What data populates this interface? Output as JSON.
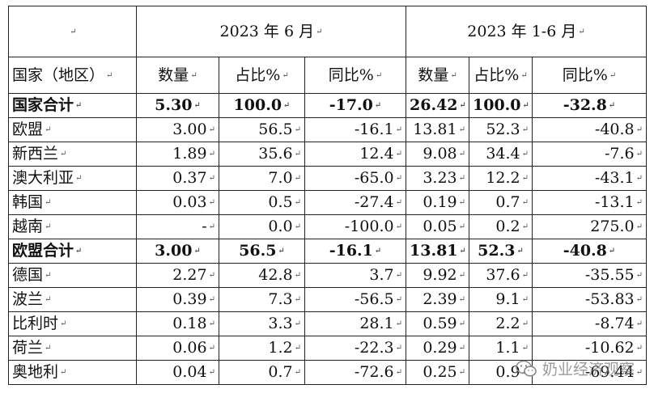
{
  "header": {
    "blank_mark": "↵",
    "period1": "2023 年 6 月",
    "period2": "2023 年 1-6 月",
    "col_country": "国家（地区）",
    "col_qty": "数量",
    "col_share": "占比%",
    "col_yoy": "同比%"
  },
  "rows": [
    {
      "name": "国家合计",
      "q1": "5.30",
      "s1": "100.0",
      "y1": "-17.0",
      "q2": "26.42",
      "s2": "100.0",
      "y2": "-32.8",
      "bold": true
    },
    {
      "name": "欧盟",
      "q1": "3.00",
      "s1": "56.5",
      "y1": "-16.1",
      "q2": "13.81",
      "s2": "52.3",
      "y2": "-40.8"
    },
    {
      "name": "新西兰",
      "q1": "1.89",
      "s1": "35.6",
      "y1": "12.4",
      "q2": "9.08",
      "s2": "34.4",
      "y2": "-7.6"
    },
    {
      "name": "澳大利亚",
      "q1": "0.37",
      "s1": "7.0",
      "y1": "-65.0",
      "q2": "3.23",
      "s2": "12.2",
      "y2": "-43.1"
    },
    {
      "name": "韩国",
      "q1": "0.03",
      "s1": "0.5",
      "y1": "-27.4",
      "q2": "0.19",
      "s2": "0.7",
      "y2": "-13.1"
    },
    {
      "name": "越南",
      "q1": "-",
      "s1": "0.0",
      "y1": "-100.0",
      "q2": "0.05",
      "s2": "0.2",
      "y2": "275.0"
    },
    {
      "name": "欧盟合计",
      "q1": "3.00",
      "s1": "56.5",
      "y1": "-16.1",
      "q2": "13.81",
      "s2": "52.3",
      "y2": "-40.8",
      "bold": true
    },
    {
      "name": "德国",
      "q1": "2.27",
      "s1": "42.8",
      "y1": "3.7",
      "q2": "9.92",
      "s2": "37.6",
      "y2": "-35.55"
    },
    {
      "name": "波兰",
      "q1": "0.39",
      "s1": "7.3",
      "y1": "-56.5",
      "q2": "2.39",
      "s2": "9.1",
      "y2": "-53.83"
    },
    {
      "name": "比利时",
      "q1": "0.18",
      "s1": "3.3",
      "y1": "28.1",
      "q2": "0.59",
      "s2": "2.2",
      "y2": "-8.74"
    },
    {
      "name": "荷兰",
      "q1": "0.06",
      "s1": "1.2",
      "y1": "-22.3",
      "q2": "0.29",
      "s2": "1.1",
      "y2": "-10.62"
    },
    {
      "name": "奥地利",
      "q1": "0.04",
      "s1": "0.7",
      "y1": "-72.6",
      "q2": "0.25",
      "s2": "0.9",
      "y2": "-69.44"
    }
  ],
  "watermark": {
    "text": "奶业经济观察",
    "icon": "wechat-icon",
    "color": "#787878"
  }
}
